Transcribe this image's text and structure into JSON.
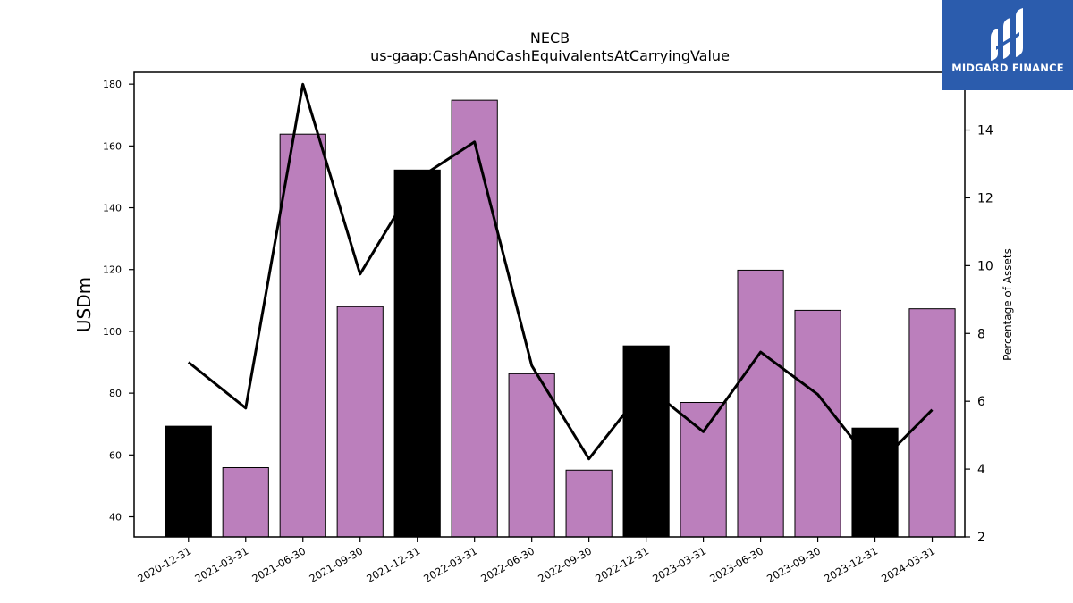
{
  "chart_data": {
    "type": "bar",
    "title": "NECB",
    "subtitle": "us-gaap:CashAndCashEquivalentsAtCarryingValue",
    "ylabel": "USDm",
    "y2label": "Percentage of Assets",
    "ylim": [
      33.5,
      183.8
    ],
    "y2lim": [
      2.0,
      15.7
    ],
    "yticks": [
      40,
      60,
      80,
      100,
      120,
      140,
      160,
      180
    ],
    "y2ticks": [
      2,
      4,
      6,
      8,
      10,
      12,
      14
    ],
    "categories": [
      "2020-12-31",
      "2021-03-31",
      "2021-06-30",
      "2021-09-30",
      "2021-12-31",
      "2022-03-31",
      "2022-06-30",
      "2022-09-30",
      "2022-12-31",
      "2023-03-31",
      "2023-06-30",
      "2023-09-30",
      "2023-12-31",
      "2024-03-31"
    ],
    "series": [
      {
        "type": "bar",
        "values": [
          69.3,
          55.9,
          163.8,
          108.0,
          152.2,
          174.8,
          86.3,
          55.1,
          95.3,
          77.0,
          119.8,
          106.8,
          68.7,
          107.3
        ],
        "colors": [
          "#000000",
          "#bb7fbc",
          "#bb7fbc",
          "#bb7fbc",
          "#000000",
          "#bb7fbc",
          "#bb7fbc",
          "#bb7fbc",
          "#000000",
          "#bb7fbc",
          "#bb7fbc",
          "#bb7fbc",
          "#000000",
          "#bb7fbc"
        ]
      },
      {
        "type": "line",
        "axis": "right",
        "values": [
          7.15,
          5.8,
          15.35,
          9.75,
          12.55,
          13.65,
          7.05,
          4.3,
          6.45,
          5.1,
          7.45,
          6.2,
          4.05,
          5.75
        ],
        "color": "#000000"
      }
    ],
    "grid": false,
    "legend": "none"
  },
  "logo": {
    "text": "MIDGARD FINANCE",
    "color": "#2b5cad"
  }
}
